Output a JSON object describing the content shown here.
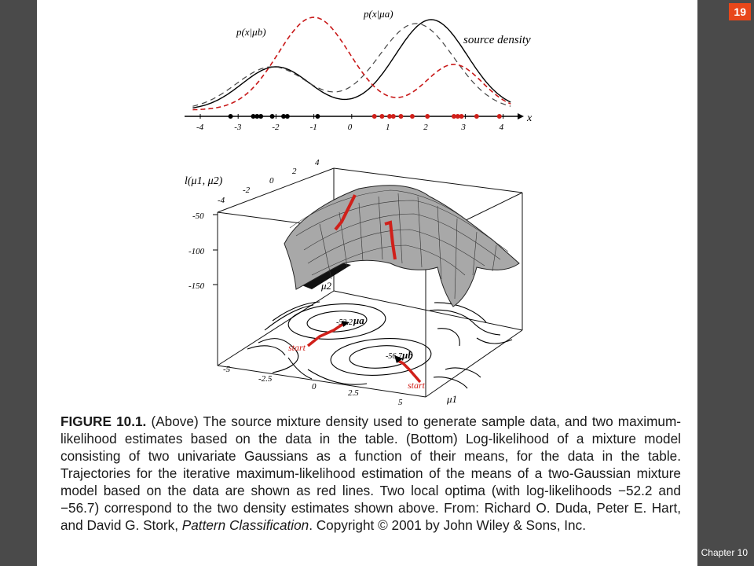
{
  "slide": {
    "number": "19",
    "chapter": "Chapter 10"
  },
  "figure": {
    "top_plot": {
      "label_mu_b": "p(x|μb)",
      "label_mu_a": "p(x|μa)",
      "label_source": "source density",
      "axis_var": "x",
      "ticks": [
        "-4",
        "-3",
        "-2",
        "-1",
        "0",
        "1",
        "2",
        "3",
        "4"
      ],
      "black_samples": [
        -3.2,
        -2.6,
        -2.5,
        -2.4,
        -2.1,
        -1.8,
        -1.7,
        -0.9
      ],
      "red_samples": [
        0.6,
        0.8,
        1.0,
        1.1,
        1.3,
        1.6,
        2.0,
        2.7,
        2.8,
        2.9,
        3.3,
        3.9
      ]
    },
    "surface_plot": {
      "z_label": "l(μ1, μ2)",
      "z_ticks": [
        "-50",
        "-100",
        "-150"
      ],
      "mu2_ticks": [
        "4",
        "2",
        "0",
        "-2",
        "-4"
      ],
      "mu2_label": "μ2",
      "mu1_ticks": [
        "-5",
        "-2.5",
        "0",
        "2.5",
        "5"
      ],
      "mu1_label": "μ1",
      "contour_label_a": "-52.2",
      "contour_label_b": "-56.7",
      "marker_a": "μa",
      "marker_b": "μb",
      "start_label": "start"
    }
  },
  "caption": {
    "label": "FIGURE 10.1.",
    "text_1": " (Above) The source mixture density used to generate sample data, and two maximum-likelihood estimates based on the data in the table. (Bottom) Log-likelihood of a mixture model consisting of two univariate Gaussians as a function of their means, for the data in the table. Trajectories for the iterative maximum-likelihood estimation of the means of a two-Gaussian mixture model based on the data are shown as red lines. Two local optima (with log-likelihoods −52.2 and −56.7) correspond to the two density estimates shown above. From: Richard O. Duda, Peter E. Hart, and David G. Stork, ",
    "book_title": "Pattern Classification",
    "text_2": ". Copyright © 2001 by John Wiley & Sons, Inc."
  },
  "colors": {
    "accent_red": "#d0201a",
    "badge": "#e8471a"
  }
}
